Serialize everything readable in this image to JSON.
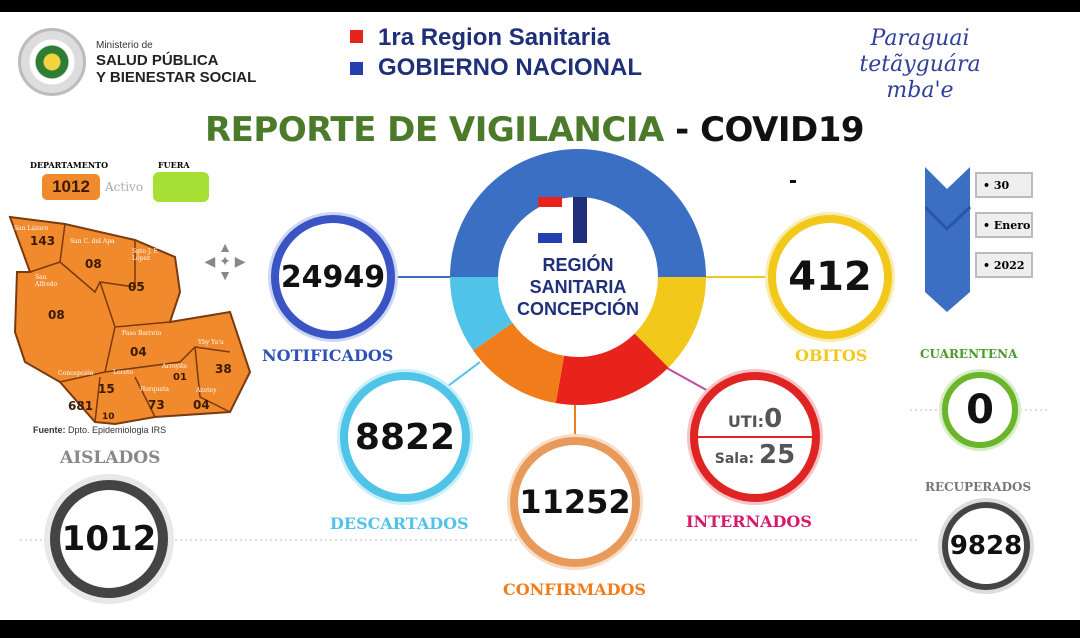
{
  "header": {
    "ministry_small": "Ministerio de",
    "ministry_line1": "SALUD PÚBLICA",
    "ministry_line2": "Y BIENESTAR SOCIAL",
    "region_line": "1ra Region Sanitaria",
    "gov_line": "GOBIERNO NACIONAL",
    "slogan": [
      "Paraguai",
      "tetãyguára",
      "mba'e"
    ],
    "seal_text": "REPÚBLICA DEL PARAGUAY"
  },
  "title": {
    "main": "REPORTE DE VIGILANCIA",
    "sub": "- COVID19"
  },
  "center": {
    "line1": "REGIÓN",
    "line2": "SANITARIA",
    "line3": "CONCEPCIÓN"
  },
  "legend": {
    "department_label": "DEPARTAMENTO",
    "department_value": "1012",
    "active_label": "Activo",
    "outside_label": "FUERA"
  },
  "map": {
    "districts": [
      {
        "name": "San Lázaro",
        "value": "143"
      },
      {
        "name": "San C. del Apa",
        "value": "08"
      },
      {
        "name": "Sgto J. F. López",
        "value": "05"
      },
      {
        "name": "San Alfredo",
        "value": "08"
      },
      {
        "name": "Paso Barreto",
        "value": "04"
      },
      {
        "name": "Yby Ya'u",
        "value": "38"
      },
      {
        "name": "Concepción",
        "value": "681"
      },
      {
        "name": "Loreto",
        "value": "15"
      },
      {
        "name": "Arroyito",
        "value": "01"
      },
      {
        "name": "Horqueta",
        "value": "73"
      },
      {
        "name": "Azotey",
        "value": "04"
      },
      {
        "name": "",
        "value": "10"
      }
    ],
    "source_label": "Fuente:",
    "source": "Dpto. Epidemiologia IRS"
  },
  "date": {
    "day": "30",
    "month": "Enero",
    "year": "2022"
  },
  "stats": {
    "notificados": {
      "label": "NOTIFICADOS",
      "value": "24949"
    },
    "obitos": {
      "label": "OBITOS",
      "value": "412"
    },
    "descartados": {
      "label": "DESCARTADOS",
      "value": "8822"
    },
    "confirmados": {
      "label": "CONFIRMADOS",
      "value": "11252"
    },
    "internados": {
      "label": "INTERNADOS",
      "uti_label": "UTI:",
      "uti_value": "0",
      "sala_label": "Sala:",
      "sala_value": "25"
    },
    "cuarentena": {
      "label": "CUARENTENA",
      "value": "0"
    },
    "recuperados": {
      "label": "RECUPERADOS",
      "value": "9828"
    },
    "aislados": {
      "label": "AISLADOS",
      "value": "1012"
    }
  },
  "colors": {
    "blue": "#3a6fc4",
    "yellow": "#f2c81a",
    "red": "#e8231c",
    "orange": "#f07c1a",
    "lightblue": "#4fc3e8",
    "green": "#6bb52a",
    "map_orange": "#f08a2c",
    "title_green": "#4a7a2a"
  }
}
